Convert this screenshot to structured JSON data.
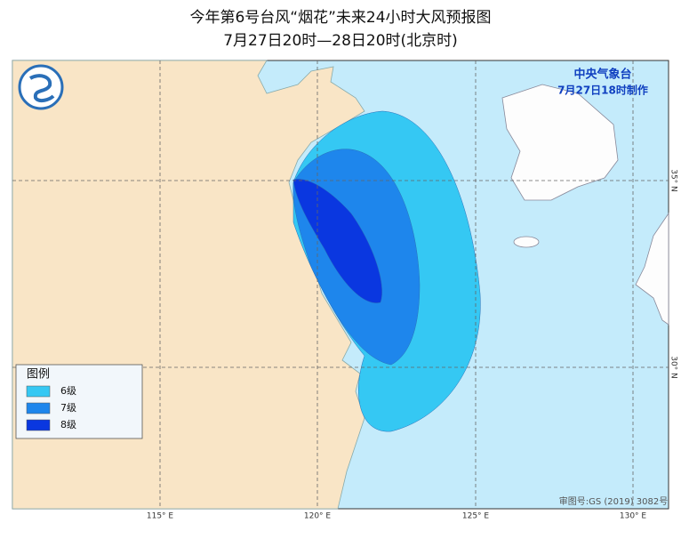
{
  "header": {
    "title_line1": "今年第6号台风“烟花”未来24小时大风预报图",
    "title_line2": "7月27日20时—28日20时(北京时)"
  },
  "agency": {
    "name": "中央气象台",
    "issued": "7月27日18时制作"
  },
  "legend": {
    "title": "图例",
    "items": [
      {
        "label": "6级",
        "color": "#35c8f3"
      },
      {
        "label": "7级",
        "color": "#1e86ec"
      },
      {
        "label": "8级",
        "color": "#0a37e0"
      }
    ]
  },
  "axes": {
    "longitude": [
      "115° E",
      "120° E",
      "125° E",
      "130° E"
    ],
    "latitude": [
      "35° N",
      "30° N"
    ]
  },
  "footer": {
    "map_number": "审图号:GS (2019) 3082号"
  }
}
